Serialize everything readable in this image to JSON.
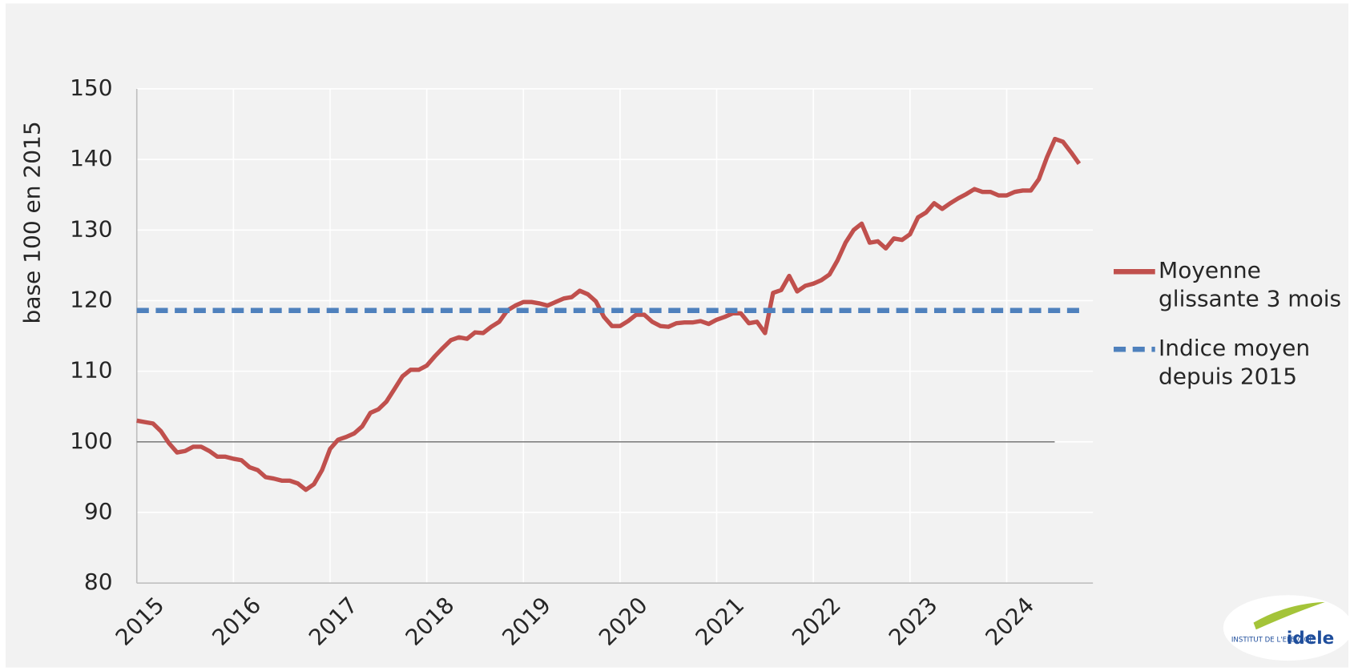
{
  "chart_data": {
    "type": "line",
    "ylabel": "base 100 en 2015",
    "categories": [
      "2015",
      null,
      null,
      null,
      null,
      null,
      null,
      null,
      null,
      null,
      null,
      null,
      "2016",
      null,
      null,
      null,
      null,
      null,
      null,
      null,
      null,
      null,
      null,
      null,
      "2017",
      null,
      null,
      null,
      null,
      null,
      null,
      null,
      null,
      null,
      null,
      null,
      "2018",
      null,
      null,
      null,
      null,
      null,
      null,
      null,
      null,
      null,
      null,
      null,
      "2019",
      null,
      null,
      null,
      null,
      null,
      null,
      null,
      null,
      null,
      null,
      null,
      "2020",
      null,
      null,
      null,
      null,
      null,
      null,
      null,
      null,
      null,
      null,
      null,
      "2021",
      null,
      null,
      null,
      null,
      null,
      null,
      null,
      null,
      null,
      null,
      null,
      "2022",
      null,
      null,
      null,
      null,
      null,
      null,
      null,
      null,
      null,
      null,
      null,
      "2023",
      null,
      null,
      null,
      null,
      null,
      null,
      null,
      null,
      null,
      null,
      null,
      "2024",
      null,
      null,
      null,
      null,
      null,
      null,
      null,
      null,
      null
    ],
    "series": [
      {
        "name": "Moyenne glissante 3 mois",
        "color": "#c0504d",
        "dashed": false,
        "values": [
          103,
          102.8,
          102.6,
          101.5,
          99.8,
          98.5,
          98.7,
          99.3,
          99.3,
          98.7,
          97.9,
          97.9,
          97.6,
          97.4,
          96.4,
          96,
          95,
          94.8,
          94.5,
          94.5,
          94.1,
          93.2,
          94,
          96,
          99,
          100.3,
          100.7,
          101.2,
          102.2,
          104.1,
          104.6,
          105.7,
          107.5,
          109.3,
          110.2,
          110.2,
          110.8,
          112.1,
          113.3,
          114.4,
          114.8,
          114.6,
          115.5,
          115.4,
          116.3,
          117,
          118.6,
          119.3,
          119.8,
          119.8,
          119.6,
          119.3,
          119.8,
          120.3,
          120.5,
          121.4,
          120.9,
          119.9,
          117.7,
          116.4,
          116.4,
          117.1,
          118,
          118,
          117,
          116.4,
          116.3,
          116.8,
          116.9,
          116.9,
          117.1,
          116.7,
          117.3,
          117.7,
          118.2,
          118.2,
          116.8,
          117,
          115.4,
          121.1,
          121.5,
          123.5,
          121.3,
          122.1,
          122.4,
          122.9,
          123.7,
          125.7,
          128.2,
          130,
          130.9,
          128.2,
          128.4,
          127.4,
          128.8,
          128.6,
          129.4,
          131.8,
          132.5,
          133.8,
          133,
          133.8,
          134.5,
          135.1,
          135.8,
          135.4,
          135.4,
          134.9,
          134.9,
          135.4,
          135.6,
          135.6,
          137.2,
          140.3,
          142.9,
          142.5,
          141,
          139.4
        ]
      },
      {
        "name": "Indice moyen depuis 2015",
        "color": "#4f81bd",
        "dashed": true,
        "values": [
          118.6,
          118.6,
          118.6,
          118.6,
          118.6,
          118.6,
          118.6,
          118.6,
          118.6,
          118.6,
          118.6,
          118.6,
          118.6,
          118.6,
          118.6,
          118.6,
          118.6,
          118.6,
          118.6,
          118.6,
          118.6,
          118.6,
          118.6,
          118.6,
          118.6,
          118.6,
          118.6,
          118.6,
          118.6,
          118.6,
          118.6,
          118.6,
          118.6,
          118.6,
          118.6,
          118.6,
          118.6,
          118.6,
          118.6,
          118.6,
          118.6,
          118.6,
          118.6,
          118.6,
          118.6,
          118.6,
          118.6,
          118.6,
          118.6,
          118.6,
          118.6,
          118.6,
          118.6,
          118.6,
          118.6,
          118.6,
          118.6,
          118.6,
          118.6,
          118.6,
          118.6,
          118.6,
          118.6,
          118.6,
          118.6,
          118.6,
          118.6,
          118.6,
          118.6,
          118.6,
          118.6,
          118.6,
          118.6,
          118.6,
          118.6,
          118.6,
          118.6,
          118.6,
          118.6,
          118.6,
          118.6,
          118.6,
          118.6,
          118.6,
          118.6,
          118.6,
          118.6,
          118.6,
          118.6,
          118.6,
          118.6,
          118.6,
          118.6,
          118.6,
          118.6,
          118.6,
          118.6,
          118.6,
          118.6,
          118.6,
          118.6,
          118.6,
          118.6,
          118.6,
          118.6,
          118.6,
          118.6,
          118.6,
          118.6,
          118.6,
          118.6,
          118.6,
          118.6,
          118.6,
          118.6,
          118.6,
          118.6,
          118.6
        ]
      }
    ],
    "reference_line": {
      "value": 100,
      "color": "#808080"
    },
    "ylim": [
      80,
      150
    ],
    "yticks": [
      80,
      90,
      100,
      110,
      120,
      130,
      140,
      150
    ],
    "grid": true,
    "legend": "right"
  },
  "logo": {
    "subtext": "INSTITUT DE L'ELEVAGE",
    "text": "idele"
  }
}
